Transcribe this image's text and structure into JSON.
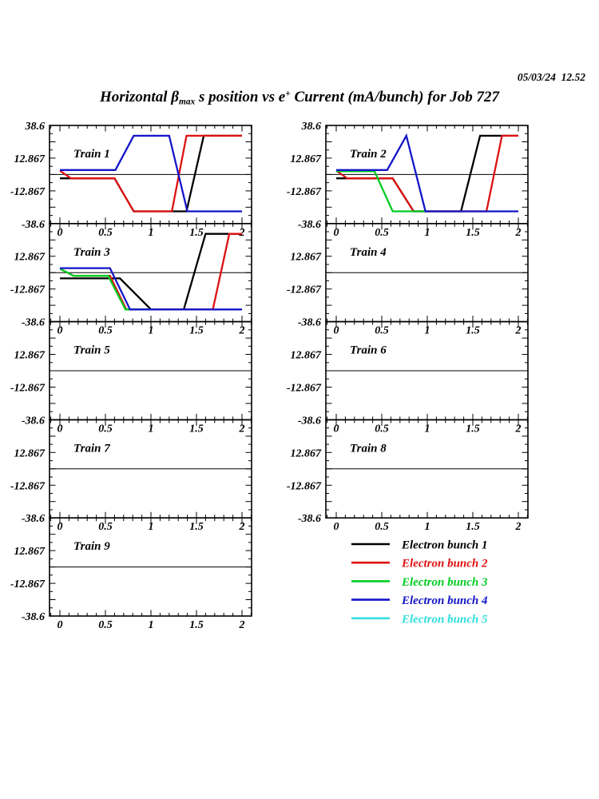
{
  "header": {
    "timestamp": "05/03/24  12.52",
    "title": {
      "part1": "Horizontal ",
      "beta": "β",
      "beta_sub": "max",
      "part2": " s position vs e",
      "sup": "+",
      "part3": " Current (mA/bunch) for Job 727"
    }
  },
  "colors": {
    "bunch1": "#000000",
    "bunch2": "#dd1111",
    "bunch3": "#00cc22",
    "bunch4": "#1414c8",
    "bunch5": "#30dede"
  },
  "legend": {
    "items": [
      {
        "label": "Electron bunch 1",
        "color": "#000000"
      },
      {
        "label": "Electron bunch 2",
        "color": "#dd1111"
      },
      {
        "label": "Electron bunch 3",
        "color": "#00cc22"
      },
      {
        "label": "Electron bunch 4",
        "color": "#1414c8"
      },
      {
        "label": "Electron bunch 5",
        "color": "#30dede"
      }
    ]
  },
  "chart_data": {
    "type": "line",
    "title": "Horizontal βmax s position vs e+ Current (mA/bunch) for Job 727",
    "timestamp": "05/03/24  12.52",
    "xlim": [
      -0.114,
      2.105
    ],
    "ylim": [
      -38.6,
      38.6
    ],
    "grid": false,
    "zero_line": true,
    "x_ticks": {
      "labels": [
        "0",
        "0.5",
        "1",
        "1.5",
        "2"
      ],
      "values": [
        0,
        0.5,
        1,
        1.5,
        2
      ],
      "minor_step": 0.1
    },
    "y_ticks": {
      "labels": [
        "38.6",
        "12.867",
        "-12.867",
        "-38.6"
      ],
      "values": [
        38.6,
        12.867,
        -12.867,
        -38.6
      ],
      "major_step": 12.867,
      "minor_step": 6.433
    },
    "panels": [
      {
        "title": "Train 1",
        "series": [
          {
            "name": "Electron bunch 1",
            "color": "#000000",
            "points": [
              [
                0,
                -3
              ],
              [
                0.6,
                -3
              ],
              [
                0.81,
                -29
              ],
              [
                1.39,
                -29
              ],
              [
                1.58,
                30.5
              ],
              [
                2,
                30.5
              ]
            ]
          },
          {
            "name": "Electron bunch 2",
            "color": "#dd1111",
            "points": [
              [
                0,
                3
              ],
              [
                0.12,
                -3
              ],
              [
                0.6,
                -3
              ],
              [
                0.81,
                -29
              ],
              [
                1.23,
                -29
              ],
              [
                1.39,
                30.5
              ],
              [
                2,
                30.5
              ]
            ]
          },
          {
            "name": "Electron bunch 4",
            "color": "#1414c8",
            "points": [
              [
                0,
                3.5
              ],
              [
                0.61,
                3.5
              ],
              [
                0.81,
                30.5
              ],
              [
                1.2,
                30.5
              ],
              [
                1.4,
                -29
              ],
              [
                2,
                -29
              ]
            ]
          }
        ]
      },
      {
        "title": "Train 2",
        "series": [
          {
            "name": "Electron bunch 1",
            "color": "#000000",
            "points": [
              [
                0,
                -3
              ],
              [
                0.62,
                -3
              ],
              [
                0.85,
                -29
              ],
              [
                1.37,
                -29
              ],
              [
                1.58,
                30.5
              ],
              [
                2,
                30.5
              ]
            ]
          },
          {
            "name": "Electron bunch 2",
            "color": "#dd1111",
            "points": [
              [
                0,
                3
              ],
              [
                0.12,
                -3
              ],
              [
                0.62,
                -3
              ],
              [
                0.85,
                -29
              ],
              [
                1.65,
                -29
              ],
              [
                1.82,
                30.5
              ],
              [
                2,
                30.5
              ]
            ]
          },
          {
            "name": "Electron bunch 3",
            "color": "#00cc22",
            "points": [
              [
                0,
                2.5
              ],
              [
                0.42,
                2.5
              ],
              [
                0.62,
                -29
              ],
              [
                1.0,
                -29
              ]
            ]
          },
          {
            "name": "Electron bunch 4",
            "color": "#1414c8",
            "points": [
              [
                0,
                3.5
              ],
              [
                0.56,
                3.5
              ],
              [
                0.77,
                30.5
              ],
              [
                0.98,
                -29
              ],
              [
                2,
                -29
              ]
            ]
          }
        ]
      },
      {
        "title": "Train 3",
        "series": [
          {
            "name": "Electron bunch 1",
            "color": "#000000",
            "points": [
              [
                0,
                -4.5
              ],
              [
                0.66,
                -4.5
              ],
              [
                1.0,
                -29
              ],
              [
                1.36,
                -29
              ],
              [
                1.6,
                30.5
              ],
              [
                2,
                30.5
              ]
            ]
          },
          {
            "name": "Electron bunch 2",
            "color": "#dd1111",
            "points": [
              [
                0,
                3
              ],
              [
                0.15,
                -2.5
              ],
              [
                0.55,
                -2.5
              ],
              [
                0.73,
                -29
              ],
              [
                1.68,
                -29
              ],
              [
                1.86,
                30.5
              ],
              [
                2,
                30.5
              ]
            ]
          },
          {
            "name": "Electron bunch 3",
            "color": "#00cc22",
            "points": [
              [
                0,
                3
              ],
              [
                0.15,
                -2.5
              ],
              [
                0.53,
                -2.5
              ],
              [
                0.72,
                -29
              ],
              [
                1.05,
                -29
              ]
            ]
          },
          {
            "name": "Electron bunch 4",
            "color": "#1414c8",
            "points": [
              [
                0,
                3.5
              ],
              [
                0.55,
                3.5
              ],
              [
                0.77,
                -29
              ],
              [
                2,
                -29
              ]
            ]
          }
        ]
      },
      {
        "title": "Train 4",
        "series": []
      },
      {
        "title": "Train 5",
        "series": []
      },
      {
        "title": "Train 6",
        "series": []
      },
      {
        "title": "Train 7",
        "series": []
      },
      {
        "title": "Train 8",
        "series": []
      },
      {
        "title": "Train 9",
        "series": []
      }
    ]
  }
}
